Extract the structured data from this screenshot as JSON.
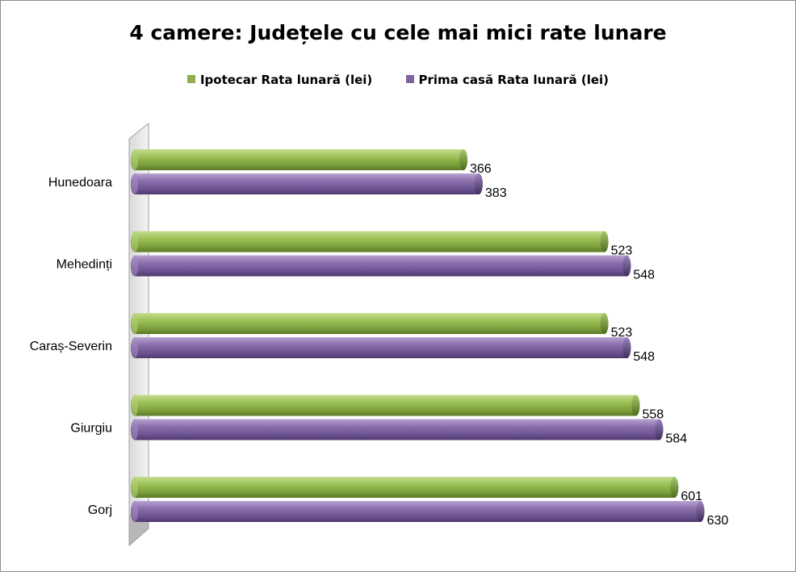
{
  "chart_data": {
    "type": "bar",
    "orientation": "horizontal",
    "title": "4 camere: Județele cu cele mai mici rate lunare",
    "categories": [
      "Hunedoara",
      "Mehedinți",
      "Caraș-Severin",
      "Giurgiu",
      "Gorj"
    ],
    "series": [
      {
        "name": "Ipotecar Rata lunară (lei)",
        "color": "#8db04a",
        "values": [
          366,
          523,
          523,
          558,
          601
        ]
      },
      {
        "name": "Prima casă Rata lunară (lei)",
        "color": "#8064a2",
        "values": [
          383,
          548,
          548,
          584,
          630
        ]
      }
    ],
    "legend_position": "top",
    "grid": false,
    "xlim": [
      0,
      700
    ]
  }
}
